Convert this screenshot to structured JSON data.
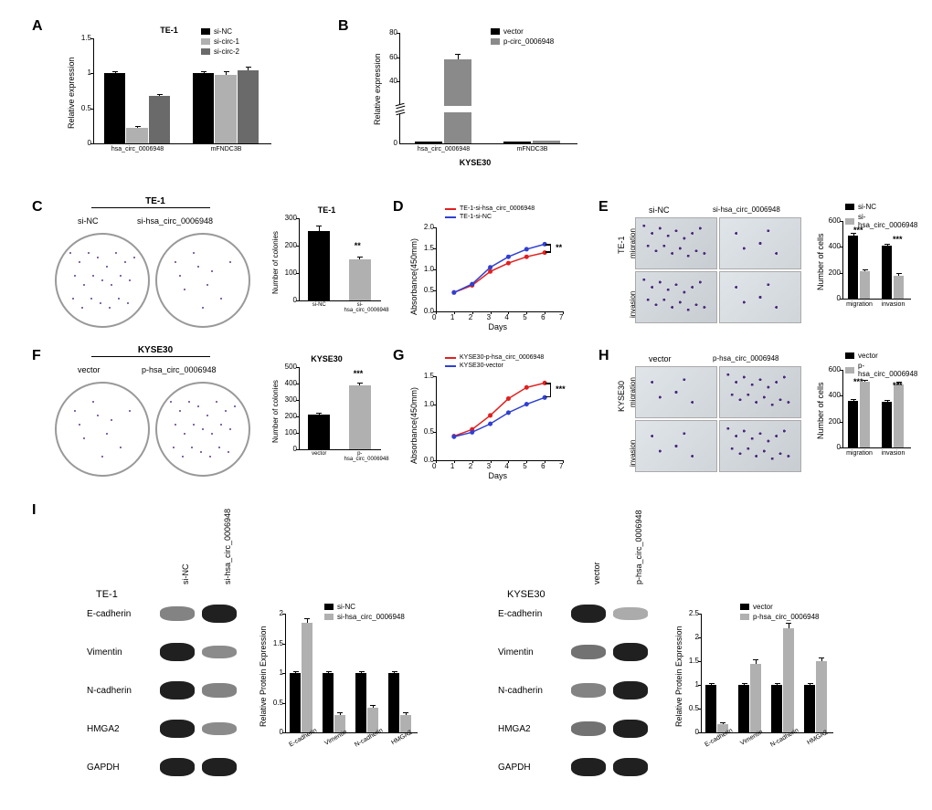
{
  "panels": {
    "A": {
      "type": "bar",
      "title": "TE-1",
      "ylabel": "Relative expression",
      "ylim": [
        0,
        1.5
      ],
      "ytick_step": 0.5,
      "categories": [
        "hsa_circ_0006948",
        "mFNDC3B"
      ],
      "series": [
        {
          "name": "si-NC",
          "color": "#000000",
          "values": [
            1.0,
            1.0
          ],
          "err": [
            0.03,
            0.03
          ]
        },
        {
          "name": "si-circ-1",
          "color": "#b0b0b0",
          "values": [
            0.22,
            0.98
          ],
          "err": [
            0.03,
            0.05
          ]
        },
        {
          "name": "si-circ-2",
          "color": "#6a6a6a",
          "values": [
            0.68,
            1.05
          ],
          "err": [
            0.03,
            0.05
          ]
        }
      ],
      "bar_width": 0.25
    },
    "B": {
      "type": "bar-broken",
      "title": "KYSE30",
      "ylabel": "Relative expression",
      "ylim_lower": [
        0,
        20
      ],
      "ylim_upper": [
        20,
        80
      ],
      "ytick_lower": [
        0
      ],
      "ytick_upper": [
        40,
        60,
        80
      ],
      "categories": [
        "hsa_circ_0006948",
        "mFNDC3B"
      ],
      "series": [
        {
          "name": "vector",
          "color": "#000000",
          "values": [
            1.0,
            1.0
          ],
          "err": [
            0.1,
            0.1
          ]
        },
        {
          "name": "p-circ_0006948",
          "color": "#8a8a8a",
          "values": [
            58,
            1.5
          ],
          "err": [
            5,
            0.2
          ]
        }
      ],
      "bar_width": 0.35
    },
    "C": {
      "type": "colony",
      "cell_line": "TE-1",
      "labels": [
        "si-NC",
        "si-hsa_circ_0006948"
      ],
      "densities": [
        "dense",
        "sparse"
      ],
      "bar_title": "TE-1",
      "bar_ylabel": "Number of colonies",
      "bar_ylim": [
        0,
        300
      ],
      "bar_ytick_step": 100,
      "bar_values": [
        255,
        150
      ],
      "bar_err": [
        20,
        10
      ],
      "bar_colors": [
        "#000000",
        "#b0b0b0"
      ],
      "sig": "**"
    },
    "D": {
      "type": "line",
      "ylabel": "Absorbance(450mm)",
      "xlabel": "Days",
      "xlim": [
        0,
        7
      ],
      "ylim": [
        0,
        2.0
      ],
      "xtick_step": 1,
      "ytick_step": 0.5,
      "series": [
        {
          "name": "TE-1-si-hsa_circ_0006948",
          "color": "#e02020",
          "x": [
            1,
            2,
            3,
            4,
            5,
            6
          ],
          "y": [
            0.45,
            0.62,
            0.95,
            1.15,
            1.3,
            1.4
          ],
          "err": 0.04
        },
        {
          "name": "TE-1-si-NC",
          "color": "#3040d0",
          "x": [
            1,
            2,
            3,
            4,
            5,
            6
          ],
          "y": [
            0.45,
            0.65,
            1.05,
            1.3,
            1.48,
            1.6
          ],
          "err": 0.04
        }
      ],
      "sig": "**"
    },
    "E": {
      "type": "transwell",
      "cell_line": "TE-1",
      "columns": [
        "si-NC",
        "si-hsa_circ_0006948"
      ],
      "rows": [
        "migration",
        "invasion"
      ],
      "densities": [
        [
          "dense",
          "sparse"
        ],
        [
          "dense",
          "sparse"
        ]
      ],
      "bar_ylabel": "Number of cells",
      "bar_ylim": [
        0,
        600
      ],
      "bar_ytick_step": 200,
      "bar_categories": [
        "migration",
        "invasion"
      ],
      "bar_series": [
        {
          "name": "si-NC",
          "color": "#000000",
          "values": [
            490,
            410
          ],
          "err": [
            15,
            15
          ]
        },
        {
          "name": "si-hsa_circ_0006948",
          "color": "#b0b0b0",
          "values": [
            210,
            180
          ],
          "err": [
            15,
            15
          ]
        }
      ],
      "sig": [
        "***",
        "***"
      ]
    },
    "F": {
      "type": "colony",
      "cell_line": "KYSE30",
      "labels": [
        "vector",
        "p-hsa_circ_0006948"
      ],
      "densities": [
        "sparse",
        "dense"
      ],
      "bar_title": "KYSE30",
      "bar_ylabel": "Number of colonies",
      "bar_ylim": [
        0,
        500
      ],
      "bar_ytick_step": 100,
      "bar_values": [
        210,
        390
      ],
      "bar_err": [
        10,
        15
      ],
      "bar_colors": [
        "#000000",
        "#b0b0b0"
      ],
      "sig": "***"
    },
    "G": {
      "type": "line",
      "ylabel": "Absorbance(450mm)",
      "xlabel": "Days",
      "xlim": [
        0,
        7
      ],
      "ylim": [
        0,
        1.5
      ],
      "xtick_step": 1,
      "ytick_step": 0.5,
      "series": [
        {
          "name": "KYSE30-p-hsa_circ_0006948",
          "color": "#e02020",
          "x": [
            1,
            2,
            3,
            4,
            5,
            6
          ],
          "y": [
            0.43,
            0.55,
            0.8,
            1.1,
            1.3,
            1.38
          ],
          "err": 0.04
        },
        {
          "name": "KYSE30-vector",
          "color": "#3040d0",
          "x": [
            1,
            2,
            3,
            4,
            5,
            6
          ],
          "y": [
            0.42,
            0.5,
            0.65,
            0.85,
            1.0,
            1.12
          ],
          "err": 0.04
        }
      ],
      "sig": "***"
    },
    "H": {
      "type": "transwell",
      "cell_line": "KYSE30",
      "columns": [
        "vector",
        "p-hsa_circ_0006948"
      ],
      "rows": [
        "migration",
        "invasion"
      ],
      "densities": [
        [
          "sparse",
          "dense"
        ],
        [
          "sparse",
          "dense"
        ]
      ],
      "bar_ylabel": "Number of cells",
      "bar_ylim": [
        0,
        600
      ],
      "bar_ytick_step": 200,
      "bar_categories": [
        "migration",
        "invasion"
      ],
      "bar_series": [
        {
          "name": "vector",
          "color": "#000000",
          "values": [
            360,
            355
          ],
          "err": [
            15,
            15
          ]
        },
        {
          "name": "p-hsa_circ_0006948",
          "color": "#b0b0b0",
          "values": [
            510,
            490
          ],
          "err": [
            15,
            15
          ]
        }
      ],
      "sig": [
        "***",
        "***"
      ]
    },
    "I": {
      "type": "western",
      "left": {
        "cell_line": "TE-1",
        "lanes": [
          "si-NC",
          "si-hsa_circ_0006948"
        ],
        "proteins": [
          "E-cadherin",
          "Vimentin",
          "N-cadherin",
          "HMGA2",
          "GAPDH"
        ],
        "intensities": [
          [
            0.4,
            1.0
          ],
          [
            1.0,
            0.35
          ],
          [
            1.0,
            0.4
          ],
          [
            1.0,
            0.35
          ],
          [
            1.0,
            1.0
          ]
        ],
        "bar_ylabel": "Relative Protein Expression",
        "bar_ylim": [
          0,
          2.0
        ],
        "bar_ytick_step": 0.5,
        "bar_categories": [
          "E-cadherin",
          "Vimentin",
          "N-cadherin",
          "HMGA2"
        ],
        "bar_series": [
          {
            "name": "si-NC",
            "color": "#000000",
            "values": [
              1.0,
              1.0,
              1.0,
              1.0
            ],
            "err": [
              0.03,
              0.03,
              0.03,
              0.03
            ]
          },
          {
            "name": "si-hsa_circ_0006948",
            "color": "#b0b0b0",
            "values": [
              1.85,
              0.3,
              0.42,
              0.3
            ],
            "err": [
              0.08,
              0.04,
              0.04,
              0.04
            ]
          }
        ]
      },
      "right": {
        "cell_line": "KYSE30",
        "lanes": [
          "vector",
          "p-hsa_circ_0006948"
        ],
        "proteins": [
          "E-cadherin",
          "Vimentin",
          "N-cadherin",
          "HMGA2",
          "GAPDH"
        ],
        "intensities": [
          [
            1.0,
            0.15
          ],
          [
            0.5,
            1.0
          ],
          [
            0.4,
            1.0
          ],
          [
            0.5,
            1.0
          ],
          [
            1.0,
            1.0
          ]
        ],
        "bar_ylabel": "Relative Protein Expression",
        "bar_ylim": [
          0,
          2.5
        ],
        "bar_ytick_step": 0.5,
        "bar_categories": [
          "E-cadherin",
          "Vimentin",
          "N-cadherin",
          "HMGA2"
        ],
        "bar_series": [
          {
            "name": "vector",
            "color": "#000000",
            "values": [
              1.0,
              1.0,
              1.0,
              1.0
            ],
            "err": [
              0.03,
              0.03,
              0.03,
              0.03
            ]
          },
          {
            "name": "p-hsa_circ_0006948",
            "color": "#b0b0b0",
            "values": [
              0.18,
              1.45,
              2.2,
              1.5
            ],
            "err": [
              0.04,
              0.08,
              0.1,
              0.08
            ]
          }
        ]
      }
    }
  }
}
